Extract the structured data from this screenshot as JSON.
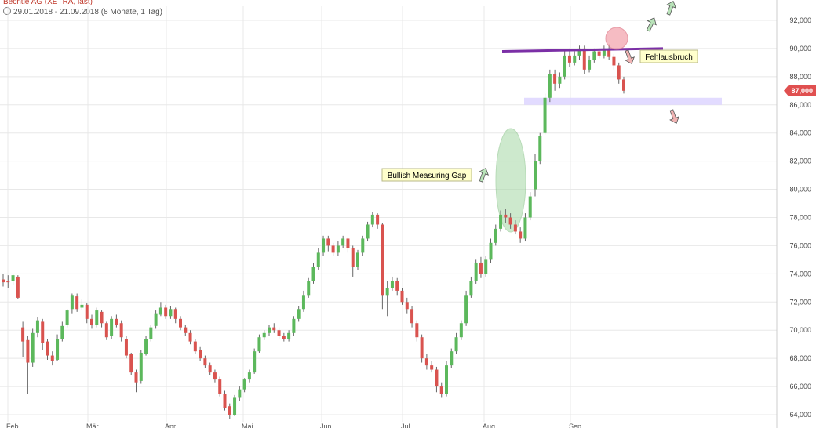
{
  "header": {
    "title": "Bechtle AG (XETRA, last)",
    "range": "29.01.2018 - 21.09.2018",
    "period": "(8 Monate, 1 Tag)"
  },
  "colors": {
    "up": "#5cb85c",
    "down": "#d9534f",
    "resistance": "#7b2fa6",
    "support_zone": "#ddd5ff",
    "gap_ellipse": "#a6d8a6",
    "breakout_circle": "#f4a6b0",
    "price_tag": "#e05050",
    "grid": "#e8e8e8"
  },
  "chart_data": {
    "type": "candlestick",
    "title": "",
    "xlabel": "",
    "ylabel": "",
    "ylim": [
      63.5,
      93.0
    ],
    "y_ticks": [
      "64,000",
      "66,000",
      "68,000",
      "70,000",
      "72,000",
      "74,000",
      "76,000",
      "78,000",
      "80,000",
      "82,000",
      "84,000",
      "86,000",
      "88,000",
      "90,000",
      "92,000"
    ],
    "x_month_labels": [
      "Feb",
      "Mär",
      "Apr",
      "Mai",
      "Jun",
      "Jul",
      "Aug",
      "Sep"
    ],
    "grid": true,
    "last_price": "87,000",
    "candles": [
      [
        73.6,
        73.4,
        74.0,
        73.1
      ],
      [
        73.5,
        73.4,
        73.9,
        73.0
      ],
      [
        73.5,
        73.9,
        74.0,
        73.2
      ],
      [
        73.8,
        72.3,
        73.9,
        72.2
      ],
      [
        70.2,
        69.2,
        70.6,
        68.1
      ],
      [
        69.3,
        67.7,
        69.6,
        65.5
      ],
      [
        67.7,
        69.8,
        70.1,
        67.4
      ],
      [
        69.8,
        70.7,
        70.9,
        69.5
      ],
      [
        70.6,
        69.1,
        70.8,
        68.6
      ],
      [
        69.2,
        68.2,
        69.4,
        67.9
      ],
      [
        68.2,
        67.8,
        68.5,
        67.5
      ],
      [
        67.9,
        69.4,
        69.7,
        67.8
      ],
      [
        69.4,
        70.3,
        70.6,
        69.2
      ],
      [
        70.4,
        71.4,
        71.5,
        70.2
      ],
      [
        71.5,
        72.5,
        72.6,
        71.2
      ],
      [
        72.4,
        71.5,
        72.6,
        71.3
      ],
      [
        71.6,
        71.8,
        72.2,
        71.4
      ],
      [
        71.8,
        70.8,
        71.9,
        70.5
      ],
      [
        70.8,
        70.4,
        71.1,
        70.1
      ],
      [
        70.4,
        71.4,
        71.6,
        70.2
      ],
      [
        71.3,
        70.5,
        71.4,
        70.2
      ],
      [
        70.5,
        69.5,
        70.6,
        69.3
      ],
      [
        69.6,
        70.8,
        71.0,
        69.4
      ],
      [
        70.8,
        70.4,
        71.1,
        70.2
      ],
      [
        70.5,
        69.5,
        70.7,
        69.2
      ],
      [
        69.4,
        68.2,
        69.6,
        68.0
      ],
      [
        68.3,
        67.0,
        68.4,
        66.8
      ],
      [
        67.0,
        66.3,
        67.2,
        65.6
      ],
      [
        66.4,
        68.4,
        68.6,
        66.2
      ],
      [
        68.3,
        69.4,
        69.6,
        68.2
      ],
      [
        69.4,
        70.2,
        70.4,
        69.2
      ],
      [
        70.3,
        71.2,
        71.4,
        70.1
      ],
      [
        71.1,
        71.6,
        72.0,
        71.0
      ],
      [
        71.6,
        71.0,
        71.8,
        70.8
      ],
      [
        71.0,
        71.5,
        71.7,
        70.8
      ],
      [
        71.5,
        70.8,
        71.6,
        70.5
      ],
      [
        70.8,
        70.2,
        71.0,
        70.0
      ],
      [
        70.2,
        69.8,
        70.4,
        69.6
      ],
      [
        69.8,
        69.2,
        70.0,
        69.0
      ],
      [
        69.2,
        68.5,
        69.4,
        68.3
      ],
      [
        68.6,
        68.0,
        68.8,
        67.8
      ],
      [
        68.0,
        67.5,
        68.2,
        67.3
      ],
      [
        67.5,
        67.0,
        67.7,
        66.8
      ],
      [
        67.0,
        66.5,
        67.2,
        66.3
      ],
      [
        66.5,
        65.5,
        66.7,
        65.3
      ],
      [
        65.5,
        64.5,
        65.7,
        64.3
      ],
      [
        64.6,
        64.0,
        64.8,
        63.7
      ],
      [
        64.0,
        65.2,
        65.4,
        63.9
      ],
      [
        65.2,
        65.8,
        66.0,
        65.0
      ],
      [
        65.8,
        66.5,
        66.6,
        65.6
      ],
      [
        66.5,
        67.0,
        67.2,
        66.3
      ],
      [
        67.0,
        68.5,
        68.7,
        66.9
      ],
      [
        68.5,
        69.5,
        69.7,
        68.4
      ],
      [
        69.5,
        69.8,
        70.0,
        69.3
      ],
      [
        69.8,
        70.2,
        70.4,
        69.6
      ],
      [
        70.2,
        70.0,
        70.5,
        69.8
      ],
      [
        70.0,
        69.6,
        70.2,
        69.4
      ],
      [
        69.6,
        69.4,
        69.8,
        69.2
      ],
      [
        69.4,
        69.8,
        70.0,
        69.2
      ],
      [
        69.8,
        70.8,
        71.0,
        69.6
      ],
      [
        70.8,
        71.5,
        71.7,
        70.6
      ],
      [
        71.5,
        72.5,
        72.8,
        71.3
      ],
      [
        72.5,
        73.5,
        73.7,
        72.3
      ],
      [
        73.5,
        74.5,
        74.8,
        73.3
      ],
      [
        74.5,
        75.5,
        75.8,
        74.3
      ],
      [
        75.5,
        76.5,
        76.7,
        75.3
      ],
      [
        76.5,
        76.0,
        76.7,
        75.6
      ],
      [
        76.0,
        75.5,
        76.2,
        75.3
      ],
      [
        75.5,
        76.0,
        76.3,
        75.3
      ],
      [
        76.0,
        76.5,
        76.7,
        75.8
      ],
      [
        76.5,
        75.8,
        76.6,
        75.5
      ],
      [
        75.8,
        74.5,
        76.0,
        73.8
      ],
      [
        74.5,
        75.5,
        75.7,
        74.3
      ],
      [
        75.5,
        76.5,
        76.7,
        75.3
      ],
      [
        76.5,
        77.5,
        77.7,
        76.3
      ],
      [
        77.5,
        78.2,
        78.4,
        77.3
      ],
      [
        78.2,
        77.5,
        78.3,
        77.2
      ],
      [
        77.5,
        72.5,
        77.6,
        71.5
      ],
      [
        72.5,
        73.0,
        73.5,
        71.0
      ],
      [
        73.0,
        73.5,
        73.8,
        72.8
      ],
      [
        73.5,
        72.8,
        73.7,
        72.5
      ],
      [
        72.8,
        72.0,
        73.0,
        71.8
      ],
      [
        72.0,
        71.5,
        72.3,
        71.2
      ],
      [
        71.5,
        70.5,
        71.7,
        70.2
      ],
      [
        70.5,
        69.5,
        70.7,
        69.2
      ],
      [
        69.5,
        68.0,
        69.7,
        67.7
      ],
      [
        68.0,
        67.5,
        68.3,
        67.2
      ],
      [
        67.5,
        67.2,
        67.8,
        67.0
      ],
      [
        67.2,
        66.0,
        67.4,
        65.6
      ],
      [
        66.0,
        65.5,
        66.3,
        65.2
      ],
      [
        65.5,
        67.5,
        67.8,
        65.3
      ],
      [
        67.5,
        68.5,
        68.7,
        67.3
      ],
      [
        68.5,
        69.5,
        69.8,
        68.3
      ],
      [
        69.5,
        70.5,
        70.7,
        69.3
      ],
      [
        70.5,
        72.5,
        72.8,
        70.3
      ],
      [
        72.5,
        73.5,
        73.8,
        72.3
      ],
      [
        73.5,
        74.8,
        75.0,
        73.3
      ],
      [
        74.8,
        74.0,
        75.2,
        73.7
      ],
      [
        74.0,
        75.0,
        75.3,
        73.8
      ],
      [
        75.0,
        76.2,
        76.5,
        74.8
      ],
      [
        76.2,
        77.2,
        77.5,
        76.0
      ],
      [
        77.2,
        78.2,
        78.5,
        77.0
      ],
      [
        78.2,
        78.0,
        78.6,
        77.6
      ],
      [
        78.0,
        77.5,
        78.3,
        77.2
      ],
      [
        77.5,
        77.0,
        77.8,
        76.8
      ],
      [
        77.0,
        76.5,
        77.3,
        76.2
      ],
      [
        76.5,
        78.0,
        78.3,
        76.3
      ],
      [
        78.0,
        79.5,
        79.8,
        77.8
      ],
      [
        80.0,
        82.0,
        82.5,
        79.5
      ],
      [
        82.0,
        83.8,
        84.0,
        81.8
      ],
      [
        84.0,
        86.5,
        86.8,
        83.9
      ],
      [
        86.5,
        88.2,
        88.5,
        86.2
      ],
      [
        88.2,
        87.5,
        88.5,
        87.0
      ],
      [
        87.5,
        88.0,
        88.3,
        87.2
      ],
      [
        88.0,
        89.5,
        89.8,
        87.8
      ],
      [
        89.5,
        89.0,
        90.0,
        88.7
      ],
      [
        89.0,
        89.5,
        89.8,
        88.8
      ],
      [
        89.5,
        90.0,
        90.2,
        89.2
      ],
      [
        90.0,
        88.5,
        90.2,
        88.2
      ],
      [
        88.5,
        89.2,
        89.5,
        88.3
      ],
      [
        89.2,
        89.8,
        90.0,
        89.0
      ],
      [
        89.8,
        89.5,
        90.0,
        89.3
      ],
      [
        89.5,
        90.0,
        90.2,
        89.3
      ],
      [
        90.0,
        89.4,
        90.3,
        89.2
      ],
      [
        89.4,
        88.8,
        89.6,
        88.5
      ],
      [
        88.8,
        87.8,
        89.0,
        87.5
      ],
      [
        87.8,
        87.0,
        88.0,
        86.8
      ]
    ],
    "annotations": [
      {
        "label": "Bullish Measuring Gap"
      },
      {
        "label": "Fehlausbruch"
      }
    ],
    "lines": {
      "resistance": [
        89.8,
        90.0
      ],
      "support_zone": [
        86.0,
        86.5
      ]
    }
  }
}
